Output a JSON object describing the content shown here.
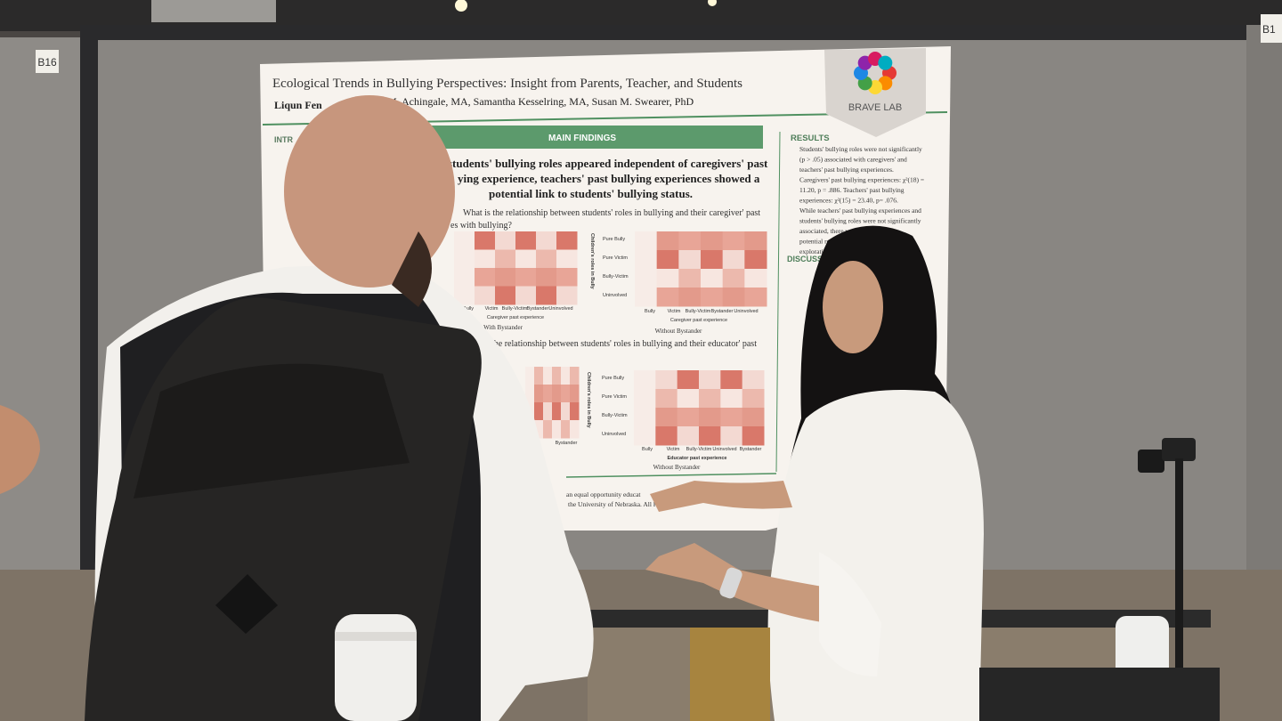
{
  "booths": {
    "left": "B16",
    "right": "B1"
  },
  "poster": {
    "title": "Ecological Trends in Bullying Perspectives: Insight from Parents, Teacher, and Students",
    "authors_left": "Liqun Fen",
    "authors_right": "M, Achingale, MA, Samantha Kesselring, MA, Susan M. Swearer, PhD",
    "logo": "BRAVE LAB",
    "intro_heading": "INTR",
    "main_findings": {
      "heading": "MAIN FINDINGS",
      "lines": [
        "students' bullying roles appeared independent of caregivers' past",
        "ying experience, teachers' past bullying experiences showed a",
        "potential link to students' bullying status."
      ],
      "question1": [
        "What is the relationship between students' roles in bullying and their caregiver' past",
        "es with bullying?"
      ],
      "question2": "the relationship between students' roles in bullying and their educator' past"
    },
    "heatmaps": {
      "y_axis_title": "Children's roles in Bully",
      "y_labels": [
        "Pure Bully",
        "Pure Victim",
        "Bully-Victim",
        "Uninvolved"
      ],
      "caregiver_x_labels": [
        "Bully",
        "Victim",
        "Bully-Victim",
        "Bystander",
        "Uninvolved"
      ],
      "caregiver_axis": "Caregiver past experience",
      "educator_x_labels": [
        "Bully",
        "Victim",
        "Bully-Victim",
        "Uninvolved",
        "Bystander"
      ],
      "educator_axis": "Educator past experience",
      "with_bystander": "With Bystander",
      "without_bystander": "Without Bystander",
      "bystander": "Bystander"
    },
    "results": {
      "heading": "RESULTS",
      "lines": [
        "Students' bullying roles were not significantly",
        "(p > .05) associated with caregivers' and",
        "teachers' past bullying experiences.",
        "Caregivers' past bullying experiences: χ²(18) =",
        "11.20, p = .886. Teachers' past bullying",
        "experiences: χ²(15) = 23.40, p= .076.",
        "While teachers' past bullying experiences and",
        "students' bullying roles were not significantly",
        "associated, there was",
        "potential relati",
        "exploration"
      ]
    },
    "discussion_heading": "DISCUSS",
    "footer": [
      "an equal opportunity educat",
      "the University of Nebraska. All Rights"
    ]
  }
}
